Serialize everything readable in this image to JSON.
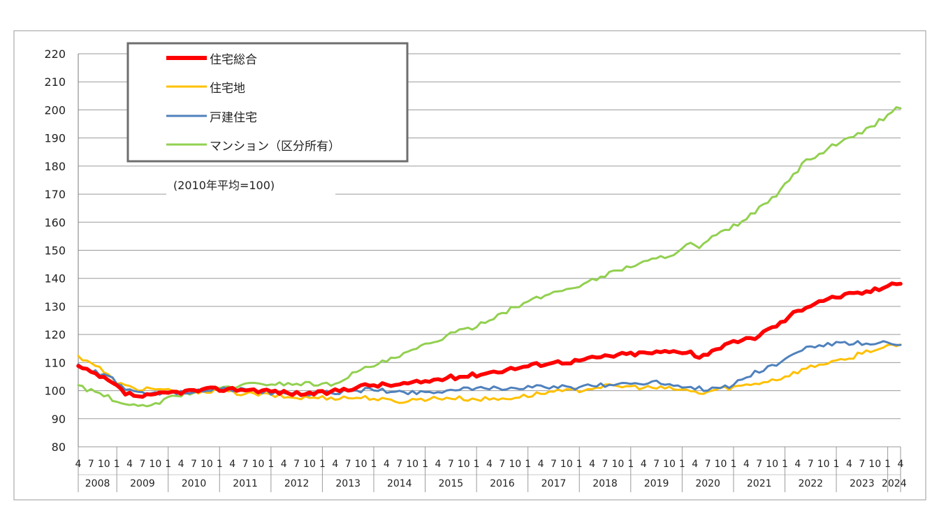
{
  "chart_data": {
    "type": "line",
    "title": "",
    "xlabel": "",
    "ylabel": "",
    "note": "(2010年平均=100)",
    "ylim": [
      80,
      220
    ],
    "yticks": [
      80,
      90,
      100,
      110,
      120,
      130,
      140,
      150,
      160,
      170,
      180,
      190,
      200,
      210,
      220
    ],
    "grid": true,
    "legend_position": "top-left",
    "start": "2008-04",
    "end": "2024-04",
    "years": [
      "2008",
      "2009",
      "2010",
      "2011",
      "2012",
      "2013",
      "2014",
      "2015",
      "2016",
      "2017",
      "2018",
      "2019",
      "2020",
      "2021",
      "2022",
      "2023",
      "2024"
    ],
    "month_ticks": [
      "1",
      "4",
      "7",
      "10"
    ],
    "series": [
      {
        "name": "住宅総合",
        "color": "#ff0000",
        "anchors": [
          [
            "2008-04",
            108.5
          ],
          [
            "2008-06",
            107
          ],
          [
            "2008-09",
            105
          ],
          [
            "2008-12",
            102.5
          ],
          [
            "2009-03",
            99
          ],
          [
            "2009-06",
            98
          ],
          [
            "2009-09",
            98
          ],
          [
            "2009-12",
            99
          ],
          [
            "2010-03",
            99.5
          ],
          [
            "2010-12",
            100.5
          ],
          [
            "2011-06",
            100.5
          ],
          [
            "2011-12",
            100
          ],
          [
            "2012-06",
            99
          ],
          [
            "2012-12",
            99
          ],
          [
            "2013-03",
            99.5
          ],
          [
            "2013-06",
            100.5
          ],
          [
            "2013-12",
            102
          ],
          [
            "2014-06",
            102
          ],
          [
            "2014-12",
            103
          ],
          [
            "2015-06",
            104.5
          ],
          [
            "2015-12",
            105.5
          ],
          [
            "2016-06",
            107
          ],
          [
            "2016-12",
            108.5
          ],
          [
            "2017-06",
            110
          ],
          [
            "2017-12",
            110.5
          ],
          [
            "2018-06",
            112
          ],
          [
            "2018-12",
            113
          ],
          [
            "2019-06",
            113.5
          ],
          [
            "2019-12",
            114
          ],
          [
            "2020-03",
            114
          ],
          [
            "2020-05",
            111.5
          ],
          [
            "2020-08",
            114.5
          ],
          [
            "2020-12",
            116.5
          ],
          [
            "2021-06",
            119
          ],
          [
            "2021-10",
            122.5
          ],
          [
            "2021-12",
            124
          ],
          [
            "2022-03",
            127.5
          ],
          [
            "2022-06",
            130
          ],
          [
            "2022-09",
            132
          ],
          [
            "2022-12",
            133
          ],
          [
            "2023-03",
            134
          ],
          [
            "2023-06",
            134.5
          ],
          [
            "2023-09",
            135.5
          ],
          [
            "2023-12",
            136.5
          ],
          [
            "2024-02",
            139
          ],
          [
            "2024-04",
            138
          ]
        ]
      },
      {
        "name": "住宅地",
        "color": "#ffc000",
        "anchors": [
          [
            "2008-04",
            112
          ],
          [
            "2008-06",
            111
          ],
          [
            "2008-09",
            108
          ],
          [
            "2008-12",
            104
          ],
          [
            "2009-03",
            101.5
          ],
          [
            "2009-06",
            100.5
          ],
          [
            "2009-09",
            101
          ],
          [
            "2009-12",
            100
          ],
          [
            "2010-03",
            99.5
          ],
          [
            "2010-12",
            100
          ],
          [
            "2011-06",
            99
          ],
          [
            "2011-12",
            98.5
          ],
          [
            "2012-06",
            97.5
          ],
          [
            "2012-12",
            97.5
          ],
          [
            "2013-06",
            97.5
          ],
          [
            "2013-12",
            97.5
          ],
          [
            "2014-06",
            96
          ],
          [
            "2014-12",
            97
          ],
          [
            "2015-06",
            97.5
          ],
          [
            "2015-12",
            97
          ],
          [
            "2016-06",
            97
          ],
          [
            "2016-12",
            98
          ],
          [
            "2017-06",
            99.5
          ],
          [
            "2017-12",
            100
          ],
          [
            "2018-06",
            101.5
          ],
          [
            "2018-12",
            101.5
          ],
          [
            "2019-06",
            101
          ],
          [
            "2019-12",
            100.5
          ],
          [
            "2020-06",
            99
          ],
          [
            "2020-09",
            100.5
          ],
          [
            "2020-12",
            101
          ],
          [
            "2021-06",
            102.5
          ],
          [
            "2021-12",
            104.5
          ],
          [
            "2022-06",
            108
          ],
          [
            "2022-12",
            110.5
          ],
          [
            "2023-03",
            110.5
          ],
          [
            "2023-06",
            113
          ],
          [
            "2023-09",
            114.5
          ],
          [
            "2023-12",
            115
          ],
          [
            "2024-02",
            116
          ],
          [
            "2024-04",
            116
          ]
        ]
      },
      {
        "name": "戸建住宅",
        "color": "#4f81bd",
        "anchors": [
          [
            "2008-04",
            109
          ],
          [
            "2008-06",
            107.5
          ],
          [
            "2008-09",
            106
          ],
          [
            "2008-12",
            104
          ],
          [
            "2009-03",
            100.5
          ],
          [
            "2009-06",
            99
          ],
          [
            "2009-09",
            98.5
          ],
          [
            "2009-12",
            99
          ],
          [
            "2010-03",
            99.5
          ],
          [
            "2010-12",
            100.5
          ],
          [
            "2011-06",
            100.5
          ],
          [
            "2011-12",
            99.5
          ],
          [
            "2012-06",
            98.5
          ],
          [
            "2012-12",
            99
          ],
          [
            "2013-06",
            99.5
          ],
          [
            "2013-12",
            100.5
          ],
          [
            "2014-06",
            99.5
          ],
          [
            "2014-12",
            99.5
          ],
          [
            "2015-06",
            100
          ],
          [
            "2015-12",
            100.5
          ],
          [
            "2016-06",
            101
          ],
          [
            "2016-12",
            101
          ],
          [
            "2017-06",
            101.5
          ],
          [
            "2017-12",
            101
          ],
          [
            "2018-06",
            102
          ],
          [
            "2018-12",
            102.5
          ],
          [
            "2019-06",
            103
          ],
          [
            "2019-12",
            102
          ],
          [
            "2020-06",
            100.5
          ],
          [
            "2020-12",
            101.5
          ],
          [
            "2021-06",
            106.5
          ],
          [
            "2021-12",
            110
          ],
          [
            "2022-06",
            115.5
          ],
          [
            "2022-12",
            116.5
          ],
          [
            "2023-06",
            117
          ],
          [
            "2023-09",
            116
          ],
          [
            "2023-12",
            117
          ],
          [
            "2024-02",
            116.5
          ],
          [
            "2024-04",
            115.5
          ]
        ]
      },
      {
        "name": "マンション（区分所有）",
        "color": "#92d050",
        "anchors": [
          [
            "2008-04",
            101.5
          ],
          [
            "2008-06",
            100.5
          ],
          [
            "2008-09",
            99
          ],
          [
            "2008-12",
            97
          ],
          [
            "2009-03",
            94.5
          ],
          [
            "2009-06",
            94.5
          ],
          [
            "2009-09",
            95
          ],
          [
            "2009-12",
            96.5
          ],
          [
            "2010-03",
            98.5
          ],
          [
            "2010-12",
            100.5
          ],
          [
            "2011-06",
            102
          ],
          [
            "2011-12",
            102.5
          ],
          [
            "2012-06",
            102.5
          ],
          [
            "2012-12",
            102.5
          ],
          [
            "2013-03",
            102
          ],
          [
            "2013-06",
            104.5
          ],
          [
            "2013-12",
            108.5
          ],
          [
            "2014-06",
            111.5
          ],
          [
            "2014-12",
            115.5
          ],
          [
            "2015-06",
            119.5
          ],
          [
            "2015-12",
            122.5
          ],
          [
            "2016-06",
            127
          ],
          [
            "2016-12",
            131
          ],
          [
            "2017-06",
            134.5
          ],
          [
            "2017-12",
            137
          ],
          [
            "2018-06",
            140.5
          ],
          [
            "2018-12",
            144
          ],
          [
            "2019-06",
            146.5
          ],
          [
            "2019-12",
            149.5
          ],
          [
            "2020-03",
            152.5
          ],
          [
            "2020-05",
            150.5
          ],
          [
            "2020-08",
            154.5
          ],
          [
            "2020-12",
            157.5
          ],
          [
            "2021-06",
            163.5
          ],
          [
            "2021-12",
            171
          ],
          [
            "2022-03",
            177
          ],
          [
            "2022-06",
            182
          ],
          [
            "2022-09",
            184
          ],
          [
            "2022-12",
            187
          ],
          [
            "2023-03",
            189
          ],
          [
            "2023-06",
            191
          ],
          [
            "2023-09",
            194
          ],
          [
            "2023-12",
            197
          ],
          [
            "2024-02",
            199.5
          ],
          [
            "2024-04",
            201
          ]
        ]
      }
    ]
  }
}
